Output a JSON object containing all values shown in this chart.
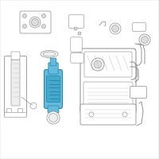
{
  "bg_color": "#ffffff",
  "line_color": "#888888",
  "line_color_dark": "#555555",
  "highlight_fill": "#44aacc",
  "highlight_edge": "#2288aa",
  "highlight_fill2": "#66bbdd",
  "fig_bg": "#ffffff",
  "lw_main": 0.7,
  "lw_thin": 0.4,
  "gray_fill": "#dddddd",
  "light_fill": "#eeeeee",
  "white": "#ffffff"
}
